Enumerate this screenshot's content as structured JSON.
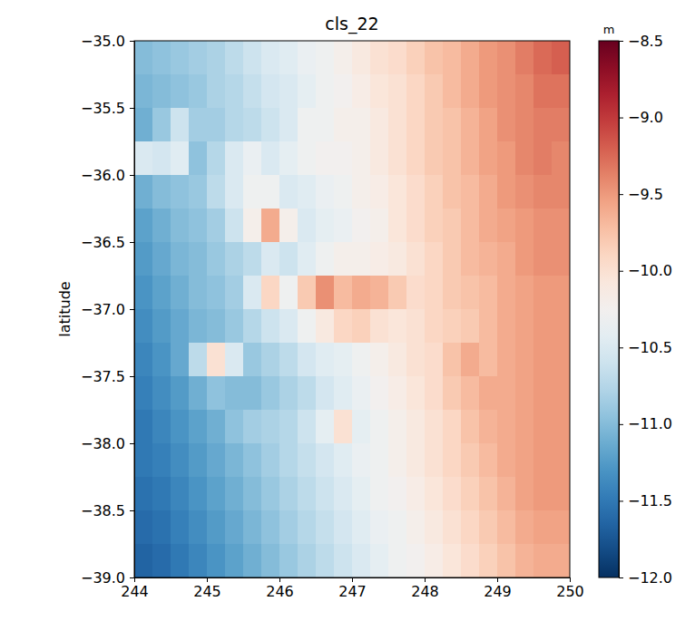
{
  "chart_data": {
    "type": "heatmap",
    "title": "cls_22",
    "ylabel": "latitude",
    "xlim": [
      244,
      250
    ],
    "ylim": [
      -39,
      -35
    ],
    "xticks": [
      244,
      245,
      246,
      247,
      248,
      249,
      250
    ],
    "yticks": [
      {
        "value": -39,
        "label": "−39.0"
      },
      {
        "value": -38.5,
        "label": "−38.5"
      },
      {
        "value": -38,
        "label": "−38.0"
      },
      {
        "value": -37.5,
        "label": "−37.5"
      },
      {
        "value": -37,
        "label": "−37.0"
      },
      {
        "value": -36.5,
        "label": "−36.5"
      },
      {
        "value": -36,
        "label": "−36.0"
      },
      {
        "value": -35.5,
        "label": "−35.5"
      },
      {
        "value": -35,
        "label": "−35.0"
      }
    ],
    "x": [
      244.125,
      244.375,
      244.625,
      244.875,
      245.125,
      245.375,
      245.625,
      245.875,
      246.125,
      246.375,
      246.625,
      246.875,
      247.125,
      247.375,
      247.625,
      247.875,
      248.125,
      248.375,
      248.625,
      248.875,
      249.125,
      249.375,
      249.625,
      249.875
    ],
    "y": [
      -35.125,
      -35.375,
      -35.625,
      -35.875,
      -36.125,
      -36.375,
      -36.625,
      -36.875,
      -37.125,
      -37.375,
      -37.625,
      -37.875,
      -38.125,
      -38.375,
      -38.625,
      -38.875
    ],
    "values": [
      [
        -11.0,
        -10.95,
        -10.9,
        -10.85,
        -10.8,
        -10.7,
        -10.6,
        -10.5,
        -10.45,
        -10.35,
        -10.3,
        -10.2,
        -10.1,
        -10.0,
        -9.95,
        -9.85,
        -9.75,
        -9.7,
        -9.6,
        -9.5,
        -9.45,
        -9.35,
        -9.25,
        -9.2
      ],
      [
        -11.05,
        -11.0,
        -10.95,
        -10.9,
        -10.8,
        -10.75,
        -10.65,
        -10.55,
        -10.5,
        -10.4,
        -10.3,
        -10.25,
        -10.15,
        -10.05,
        -10.0,
        -9.9,
        -9.8,
        -9.7,
        -9.6,
        -9.5,
        -9.45,
        -9.4,
        -9.3,
        -9.3
      ],
      [
        -11.1,
        -10.9,
        -10.6,
        -10.85,
        -10.85,
        -10.75,
        -10.7,
        -10.6,
        -10.5,
        -10.3,
        -10.3,
        -10.2,
        -10.2,
        -10.1,
        -10.0,
        -9.9,
        -9.8,
        -9.75,
        -9.65,
        -9.55,
        -9.45,
        -9.4,
        -9.35,
        -9.35
      ],
      [
        -10.5,
        -10.55,
        -10.45,
        -10.95,
        -10.75,
        -10.5,
        -10.35,
        -10.5,
        -10.4,
        -10.3,
        -10.25,
        -10.25,
        -10.2,
        -10.1,
        -10.0,
        -9.9,
        -9.8,
        -9.75,
        -9.65,
        -9.55,
        -9.5,
        -9.4,
        -9.35,
        -9.4
      ],
      [
        -11.1,
        -11.0,
        -10.95,
        -10.9,
        -10.7,
        -10.5,
        -10.3,
        -10.3,
        -10.5,
        -10.45,
        -10.35,
        -10.3,
        -10.2,
        -10.15,
        -10.05,
        -9.95,
        -9.85,
        -9.75,
        -9.7,
        -9.6,
        -9.5,
        -9.45,
        -9.4,
        -9.4
      ],
      [
        -11.2,
        -11.1,
        -11.0,
        -10.95,
        -10.85,
        -10.6,
        -10.2,
        -9.6,
        -10.2,
        -10.5,
        -10.4,
        -10.35,
        -10.25,
        -10.2,
        -10.05,
        -9.95,
        -9.85,
        -9.8,
        -9.7,
        -9.6,
        -9.55,
        -9.5,
        -9.45,
        -9.45
      ],
      [
        -11.25,
        -11.15,
        -11.05,
        -11.0,
        -10.9,
        -10.8,
        -10.7,
        -10.5,
        -10.6,
        -10.45,
        -10.3,
        -10.2,
        -10.2,
        -10.15,
        -10.1,
        -10.0,
        -9.9,
        -9.8,
        -9.7,
        -9.65,
        -9.6,
        -9.5,
        -9.45,
        -9.45
      ],
      [
        -11.3,
        -11.2,
        -11.1,
        -11.0,
        -10.95,
        -10.85,
        -10.5,
        -9.9,
        -10.3,
        -9.8,
        -9.45,
        -9.7,
        -9.6,
        -9.65,
        -9.8,
        -9.95,
        -9.9,
        -9.8,
        -9.75,
        -9.7,
        -9.6,
        -9.55,
        -9.5,
        -9.5
      ],
      [
        -11.35,
        -11.25,
        -11.15,
        -11.05,
        -11.0,
        -10.9,
        -10.75,
        -10.6,
        -10.5,
        -10.3,
        -10.1,
        -9.9,
        -9.85,
        -10.0,
        -10.05,
        -10.0,
        -9.9,
        -9.85,
        -9.8,
        -9.7,
        -9.6,
        -9.55,
        -9.5,
        -9.5
      ],
      [
        -11.4,
        -11.3,
        -11.15,
        -10.7,
        -10.0,
        -10.5,
        -10.9,
        -10.8,
        -10.7,
        -10.55,
        -10.45,
        -10.4,
        -10.3,
        -10.2,
        -10.1,
        -10.0,
        -9.95,
        -9.75,
        -9.6,
        -9.7,
        -9.6,
        -9.55,
        -9.5,
        -9.5
      ],
      [
        -11.45,
        -11.35,
        -11.25,
        -11.1,
        -10.95,
        -11.0,
        -11.0,
        -10.9,
        -10.8,
        -10.7,
        -10.55,
        -10.45,
        -10.35,
        -10.25,
        -10.15,
        -10.05,
        -9.95,
        -9.8,
        -9.7,
        -9.6,
        -9.6,
        -9.55,
        -9.5,
        -9.5
      ],
      [
        -11.5,
        -11.4,
        -11.3,
        -11.2,
        -11.1,
        -10.95,
        -10.85,
        -10.8,
        -10.75,
        -10.6,
        -10.4,
        -10.0,
        -10.4,
        -10.3,
        -10.2,
        -10.1,
        -10.0,
        -9.9,
        -9.75,
        -9.65,
        -9.6,
        -9.55,
        -9.5,
        -9.5
      ],
      [
        -11.5,
        -11.45,
        -11.35,
        -11.25,
        -11.15,
        -11.05,
        -10.95,
        -10.85,
        -10.75,
        -10.65,
        -10.55,
        -10.45,
        -10.35,
        -10.3,
        -10.2,
        -10.1,
        -10.0,
        -9.9,
        -9.8,
        -9.7,
        -9.6,
        -9.55,
        -9.5,
        -9.5
      ],
      [
        -11.55,
        -11.5,
        -11.4,
        -11.3,
        -11.2,
        -11.1,
        -11.0,
        -10.9,
        -10.8,
        -10.7,
        -10.6,
        -10.5,
        -10.4,
        -10.3,
        -10.25,
        -10.15,
        -10.05,
        -9.95,
        -9.85,
        -9.75,
        -9.65,
        -9.55,
        -9.5,
        -9.5
      ],
      [
        -11.6,
        -11.55,
        -11.45,
        -11.35,
        -11.25,
        -11.15,
        -11.05,
        -10.95,
        -10.85,
        -10.75,
        -10.65,
        -10.55,
        -10.45,
        -10.35,
        -10.3,
        -10.2,
        -10.1,
        -10.0,
        -9.9,
        -9.8,
        -9.7,
        -9.6,
        -9.55,
        -9.55
      ],
      [
        -11.65,
        -11.6,
        -11.5,
        -11.4,
        -11.3,
        -11.2,
        -11.1,
        -11.0,
        -10.9,
        -10.8,
        -10.7,
        -10.6,
        -10.5,
        -10.4,
        -10.3,
        -10.25,
        -10.15,
        -10.05,
        -9.95,
        -9.85,
        -9.75,
        -9.65,
        -9.6,
        -9.6
      ]
    ],
    "colorbar": {
      "range": [
        -12,
        -8.5
      ],
      "label": "m",
      "ticks": [
        {
          "value": -12,
          "label": "−12.0"
        },
        {
          "value": -11.5,
          "label": "−11.5"
        },
        {
          "value": -11,
          "label": "−11.0"
        },
        {
          "value": -10.5,
          "label": "−10.5"
        },
        {
          "value": -10,
          "label": "−10.0"
        },
        {
          "value": -9.5,
          "label": "−9.5"
        },
        {
          "value": -9,
          "label": "−9.0"
        },
        {
          "value": -8.5,
          "label": "−8.5"
        }
      ]
    }
  }
}
